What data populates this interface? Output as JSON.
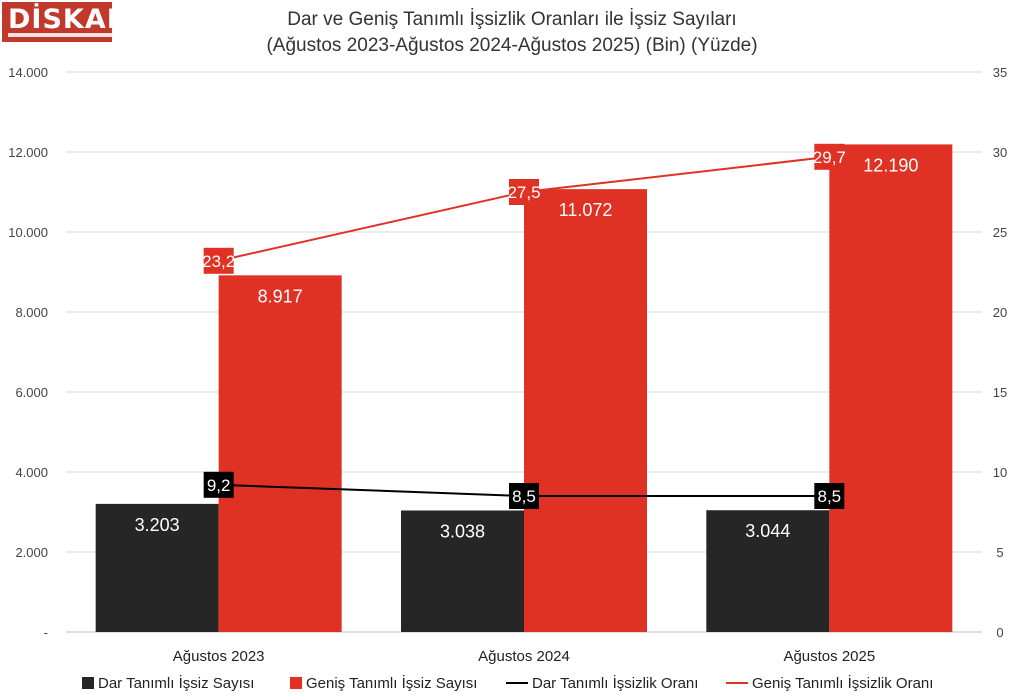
{
  "logo": {
    "text": "DİSKAR"
  },
  "chart_data": {
    "type": "bar",
    "title": "Dar ve Geniş Tanımlı İşsizlik Oranları ile İşsiz Sayıları",
    "subtitle": "(Ağustos 2023-Ağustos 2024-Ağustos 2025) (Bin) (Yüzde)",
    "categories": [
      "Ağustos 2023",
      "Ağustos 2024",
      "Ağustos 2025"
    ],
    "series": [
      {
        "name": "Dar Tanımlı İşsiz Sayısı",
        "kind": "bar",
        "axis": "left",
        "color": "#262626",
        "values": [
          3203,
          3038,
          3044
        ],
        "labels": [
          "3.203",
          "3.038",
          "3.044"
        ]
      },
      {
        "name": "Geniş Tanımlı İşsiz Sayısı",
        "kind": "bar",
        "axis": "left",
        "color": "#e03224",
        "values": [
          8917,
          11072,
          12190
        ],
        "labels": [
          "8.917",
          "11.072",
          "12.190"
        ]
      },
      {
        "name": "Dar Tanımlı İşsizlik Oranı",
        "kind": "line",
        "axis": "right",
        "color": "#000000",
        "values": [
          9.2,
          8.5,
          8.5
        ],
        "labels": [
          "9,2",
          "8,5",
          "8,5"
        ]
      },
      {
        "name": "Geniş Tanımlı İşsizlik Oranı",
        "kind": "line",
        "axis": "right",
        "color": "#e03224",
        "values": [
          23.2,
          27.5,
          29.7
        ],
        "labels": [
          "23,2",
          "27,5",
          "29,7"
        ]
      }
    ],
    "y_left": {
      "range": [
        0,
        14000
      ],
      "ticks": [
        0,
        2000,
        4000,
        6000,
        8000,
        10000,
        12000,
        14000
      ],
      "tick_labels": [
        "-",
        "2.000",
        "4.000",
        "6.000",
        "8.000",
        "10.000",
        "12.000",
        "14.000"
      ]
    },
    "y_right": {
      "range": [
        0,
        35
      ],
      "ticks": [
        0,
        5,
        10,
        15,
        20,
        25,
        30,
        35
      ],
      "tick_labels": [
        "0",
        "5",
        "10",
        "15",
        "20",
        "25",
        "30",
        "35"
      ]
    },
    "grid": true,
    "legend_position": "bottom"
  }
}
